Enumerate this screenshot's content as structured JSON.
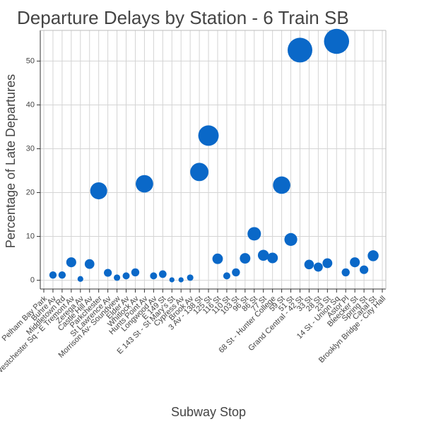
{
  "chart_data": {
    "type": "scatter",
    "title": "Departure Delays by Station - 6 Train SB",
    "x_label": "Subway Stop",
    "y_label": "Percentage of Late Departures",
    "categories": [
      "Pelham Bay Park",
      "Buhre Av",
      "Middletown Rd",
      "Westchester Sq - E Tremont Av",
      "Zerega Av",
      "Castle Hill Av",
      "Parkchester",
      "St Lawrence Av",
      "Morrison Av- Soundview",
      "Elder Av",
      "Whitlock Av",
      "Hunts Point Av",
      "Longwood Av",
      "E 149 St",
      "E 143 St - St Mary's St",
      "Cypress Av",
      "Brook Av",
      "3 Av - 138 St",
      "125 St",
      "116 St",
      "110 St",
      "103 St",
      "96 St",
      "86 St",
      "77 St",
      "68 St - Hunter College",
      "59 St",
      "51 St",
      "Grand Central - 42 St",
      "33 St",
      "28 St",
      "23 St",
      "14 St - Union Sq",
      "Astor Pl",
      "Bleecker St",
      "Spring St",
      "Canal St",
      "Brooklyn Bridge - City Hall"
    ],
    "values": [
      null,
      1.2,
      1.2,
      4.1,
      0.3,
      3.7,
      20.4,
      1.7,
      0.6,
      1.0,
      1.8,
      22.0,
      1.0,
      1.4,
      0.1,
      0.1,
      0.6,
      24.7,
      33.0,
      4.9,
      1.0,
      1.8,
      5.0,
      10.6,
      5.7,
      5.1,
      21.7,
      9.3,
      52.5,
      3.6,
      3.0,
      3.9,
      54.5,
      1.8,
      4.1,
      2.4,
      5.6,
      null
    ],
    "color": "#0a68c8",
    "ylim": [
      -2,
      57
    ],
    "yticks": [
      0,
      10,
      20,
      30,
      40,
      50
    ],
    "grid": true
  }
}
